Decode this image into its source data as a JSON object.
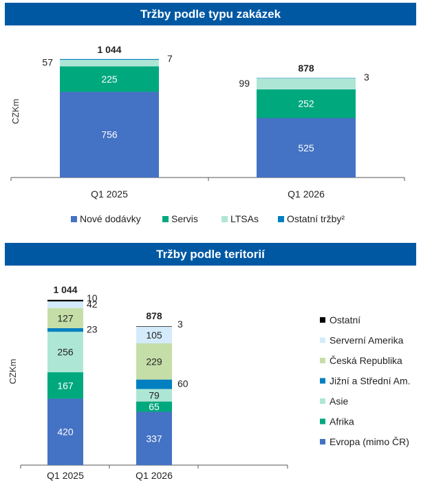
{
  "chart_data": [
    {
      "type": "bar",
      "title": "Tržby podle typu zakázek",
      "ylabel": "CZKm",
      "categories": [
        "Q1 2025",
        "Q1 2026"
      ],
      "totals": [
        "1 044",
        "878"
      ],
      "series": [
        {
          "name": "Nové dodávky",
          "values": [
            756,
            525
          ],
          "color": "#4472c4"
        },
        {
          "name": "Servis",
          "values": [
            225,
            252
          ],
          "color": "#00a87e"
        },
        {
          "name": "LTSAs",
          "values": [
            57,
            99
          ],
          "color": "#aee6d6"
        },
        {
          "name": "Ostatní tržby²",
          "values": [
            7,
            3
          ],
          "color": "#0080c0"
        }
      ],
      "legend": "bottom"
    },
    {
      "type": "bar",
      "title": "Tržby podle teritorií",
      "ylabel": "CZKm",
      "categories": [
        "Q1 2025",
        "Q1 2026"
      ],
      "totals": [
        "1 044",
        "878"
      ],
      "series": [
        {
          "name": "Evropa (mimo ČR)",
          "values": [
            420,
            337
          ],
          "color": "#4472c4"
        },
        {
          "name": "Afrika",
          "values": [
            167,
            65
          ],
          "color": "#00a87e"
        },
        {
          "name": "Asie",
          "values": [
            256,
            79
          ],
          "color": "#aee6d6"
        },
        {
          "name": "Jižní a Střední Am.",
          "values": [
            23,
            60
          ],
          "color": "#0080c0"
        },
        {
          "name": "Česká Republika",
          "values": [
            127,
            229
          ],
          "color": "#c5dea8"
        },
        {
          "name": "Serverní Amerika",
          "values": [
            42,
            105
          ],
          "color": "#d3ebfa"
        },
        {
          "name": "Ostatní",
          "values": [
            10,
            3
          ],
          "color": "#000000"
        }
      ],
      "legend": "right"
    }
  ]
}
